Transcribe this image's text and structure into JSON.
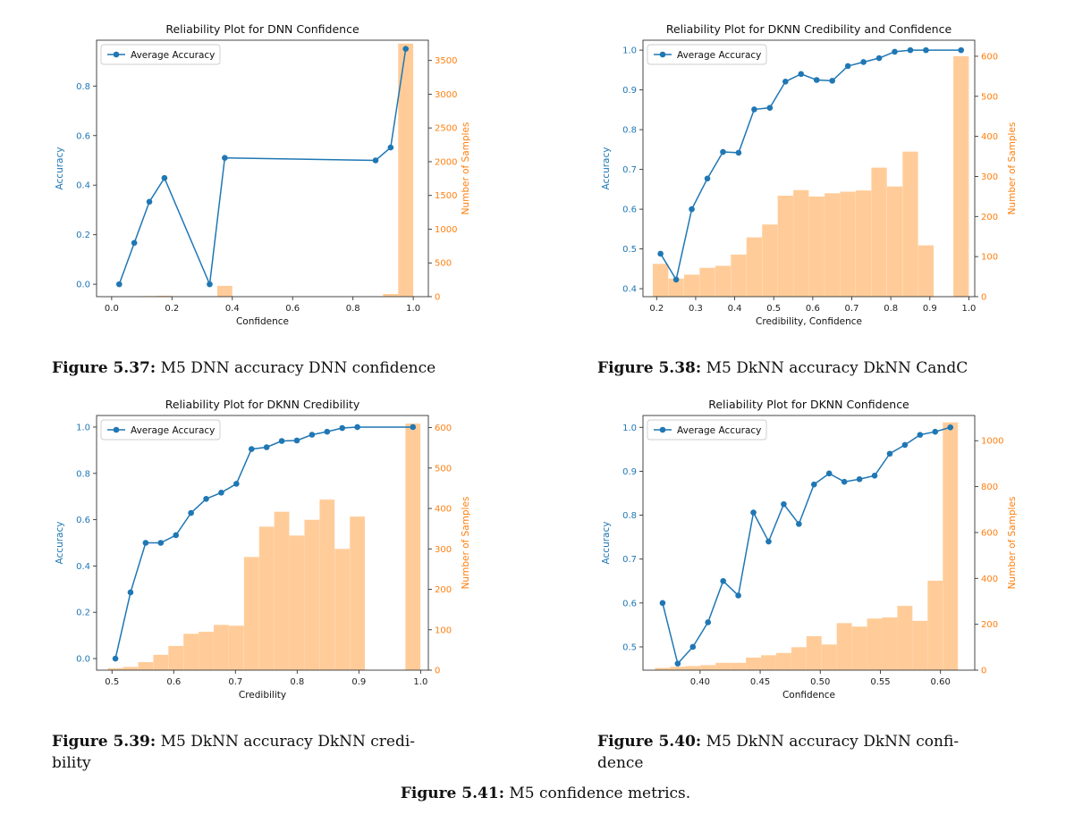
{
  "colors": {
    "line": "#1f77b4",
    "bar": "#ffcc99",
    "barAxis": "#ff7f0e",
    "axis": "#333333"
  },
  "chart_data": [
    {
      "type": "bar+line",
      "title": "Reliability Plot for DNN Confidence",
      "xlabel": "Confidence",
      "ylabel": "Accuracy",
      "ylabel2": "Number of Samples",
      "legend": "Average Accuracy",
      "legend_loc": "top-left",
      "xlim": [
        -0.05,
        1.05
      ],
      "ylim": [
        -0.05,
        0.985
      ],
      "y2lim": [
        0,
        3800
      ],
      "xticks": [
        0.0,
        0.2,
        0.4,
        0.6,
        0.8,
        1.0
      ],
      "xticklabels": [
        "0.0",
        "0.2",
        "0.4",
        "0.6",
        "0.8",
        "1.0"
      ],
      "yticks": [
        0.0,
        0.2,
        0.4,
        0.6,
        0.8
      ],
      "yticklabels": [
        "0.0",
        "0.2",
        "0.4",
        "0.6",
        "0.8"
      ],
      "y2ticks": [
        0,
        500,
        1000,
        1500,
        2000,
        2500,
        3000,
        3500
      ],
      "y2ticklabels": [
        "0",
        "500",
        "1000",
        "1500",
        "2000",
        "2500",
        "3000",
        "3500"
      ],
      "bar_width": 0.05,
      "bars_x": [
        0.025,
        0.075,
        0.125,
        0.175,
        0.325,
        0.375,
        0.875,
        0.925,
        0.975
      ],
      "bars_y": [
        3,
        6,
        9,
        14,
        4,
        160,
        4,
        40,
        3750
      ],
      "line_x": [
        0.025,
        0.075,
        0.125,
        0.175,
        0.325,
        0.375,
        0.875,
        0.925,
        0.975
      ],
      "line_y": [
        0.0,
        0.167,
        0.333,
        0.429,
        0.0,
        0.51,
        0.5,
        0.552,
        0.95
      ]
    },
    {
      "type": "bar+line",
      "title": "Reliability Plot for DKNN Credibility and Confidence",
      "xlabel": "Credibility, Confidence",
      "ylabel": "Accuracy",
      "ylabel2": "Number of Samples",
      "legend": "Average Accuracy",
      "legend_loc": "top-left",
      "xlim": [
        0.165,
        1.015
      ],
      "ylim": [
        0.38,
        1.025
      ],
      "y2lim": [
        0,
        640
      ],
      "xticks": [
        0.2,
        0.3,
        0.4,
        0.5,
        0.6,
        0.7,
        0.8,
        0.9,
        1.0
      ],
      "xticklabels": [
        "0.2",
        "0.3",
        "0.4",
        "0.5",
        "0.6",
        "0.7",
        "0.8",
        "0.9",
        "1.0"
      ],
      "yticks": [
        0.4,
        0.5,
        0.6,
        0.7,
        0.8,
        0.9,
        1.0
      ],
      "yticklabels": [
        "0.4",
        "0.5",
        "0.6",
        "0.7",
        "0.8",
        "0.9",
        "1.0"
      ],
      "y2ticks": [
        0,
        100,
        200,
        300,
        400,
        500,
        600
      ],
      "y2ticklabels": [
        "0",
        "100",
        "200",
        "300",
        "400",
        "500",
        "600"
      ],
      "bar_width": 0.0396,
      "bars_x": [
        0.21,
        0.25,
        0.29,
        0.33,
        0.37,
        0.41,
        0.45,
        0.49,
        0.53,
        0.57,
        0.61,
        0.65,
        0.69,
        0.73,
        0.77,
        0.81,
        0.85,
        0.89,
        0.98
      ],
      "bars_y": [
        82,
        45,
        55,
        72,
        77,
        105,
        148,
        180,
        252,
        266,
        250,
        258,
        262,
        265,
        322,
        275,
        362,
        128,
        600
      ],
      "line_x": [
        0.21,
        0.25,
        0.29,
        0.33,
        0.37,
        0.41,
        0.45,
        0.49,
        0.53,
        0.57,
        0.61,
        0.65,
        0.69,
        0.73,
        0.77,
        0.81,
        0.85,
        0.89,
        0.98
      ],
      "line_y": [
        0.488,
        0.423,
        0.6,
        0.677,
        0.744,
        0.742,
        0.851,
        0.855,
        0.921,
        0.94,
        0.925,
        0.923,
        0.96,
        0.97,
        0.98,
        0.996,
        1.0,
        1.0,
        1.0
      ]
    },
    {
      "type": "bar+line",
      "title": "Reliability Plot for DKNN Credibility",
      "xlabel": "Credibility",
      "ylabel": "Accuracy",
      "ylabel2": "Number of Samples",
      "legend": "Average Accuracy",
      "legend_loc": "top-left",
      "xlim": [
        0.475,
        1.0125
      ],
      "ylim": [
        -0.05,
        1.05
      ],
      "y2lim": [
        0,
        630
      ],
      "xticks": [
        0.5,
        0.6,
        0.7,
        0.8,
        0.9,
        1.0
      ],
      "xticklabels": [
        "0.5",
        "0.6",
        "0.7",
        "0.8",
        "0.9",
        "1.0"
      ],
      "yticks": [
        0.0,
        0.2,
        0.4,
        0.6,
        0.8,
        1.0
      ],
      "yticklabels": [
        "0.0",
        "0.2",
        "0.4",
        "0.6",
        "0.8",
        "1.0"
      ],
      "y2ticks": [
        0,
        100,
        200,
        300,
        400,
        500,
        600
      ],
      "y2ticklabels": [
        "0",
        "100",
        "200",
        "300",
        "400",
        "500",
        "600"
      ],
      "bar_width": 0.0243,
      "bars_x": [
        0.5055,
        0.53,
        0.5545,
        0.579,
        0.6035,
        0.628,
        0.6525,
        0.677,
        0.7015,
        0.726,
        0.7505,
        0.775,
        0.7995,
        0.824,
        0.8485,
        0.873,
        0.8975,
        0.9875
      ],
      "bars_y": [
        5,
        8,
        20,
        38,
        60,
        90,
        95,
        112,
        110,
        280,
        355,
        392,
        333,
        372,
        422,
        300,
        380,
        610
      ],
      "line_x": [
        0.5055,
        0.53,
        0.5545,
        0.579,
        0.6035,
        0.628,
        0.6525,
        0.677,
        0.7015,
        0.726,
        0.7505,
        0.775,
        0.7995,
        0.824,
        0.8485,
        0.873,
        0.8975,
        0.9875
      ],
      "line_y": [
        0.0,
        0.286,
        0.5,
        0.5,
        0.533,
        0.629,
        0.69,
        0.717,
        0.755,
        0.905,
        0.913,
        0.94,
        0.942,
        0.967,
        0.98,
        0.996,
        1.0,
        1.0
      ]
    },
    {
      "type": "bar+line",
      "title": "Reliability Plot for DKNN Confidence",
      "xlabel": "Confidence",
      "ylabel": "Accuracy",
      "ylabel2": "Number of Samples",
      "legend": "Average Accuracy",
      "legend_loc": "top-left",
      "xlim": [
        0.3525,
        0.6285
      ],
      "ylim": [
        0.447,
        1.027
      ],
      "y2lim": [
        0,
        1110
      ],
      "xticks": [
        0.4,
        0.45,
        0.5,
        0.55,
        0.6
      ],
      "xticklabels": [
        "0.40",
        "0.45",
        "0.50",
        "0.55",
        "0.60"
      ],
      "yticks": [
        0.5,
        0.6,
        0.7,
        0.8,
        0.9,
        1.0
      ],
      "yticklabels": [
        "0.5",
        "0.6",
        "0.7",
        "0.8",
        "0.9",
        "1.0"
      ],
      "y2ticks": [
        0,
        200,
        400,
        600,
        800,
        1000
      ],
      "y2ticklabels": [
        "0",
        "200",
        "400",
        "600",
        "800",
        "1000"
      ],
      "bar_width": 0.01256,
      "bars_x": [
        0.3688,
        0.3814,
        0.394,
        0.4066,
        0.4192,
        0.4318,
        0.4444,
        0.457,
        0.4696,
        0.4822,
        0.4948,
        0.5074,
        0.52,
        0.5326,
        0.5452,
        0.5578,
        0.5704,
        0.583,
        0.5956,
        0.6082
      ],
      "bars_y": [
        10,
        15,
        18,
        22,
        32,
        32,
        55,
        65,
        75,
        100,
        148,
        112,
        205,
        190,
        225,
        230,
        280,
        215,
        390,
        1080
      ],
      "line_x": [
        0.3688,
        0.3814,
        0.394,
        0.4066,
        0.4192,
        0.4318,
        0.4444,
        0.457,
        0.4696,
        0.4822,
        0.4948,
        0.5074,
        0.52,
        0.5326,
        0.5452,
        0.5578,
        0.5704,
        0.583,
        0.5956,
        0.6082
      ],
      "line_y": [
        0.6,
        0.462,
        0.5,
        0.556,
        0.65,
        0.617,
        0.806,
        0.74,
        0.825,
        0.78,
        0.87,
        0.895,
        0.876,
        0.882,
        0.89,
        0.94,
        0.96,
        0.983,
        0.99,
        1.0
      ]
    }
  ],
  "captions": [
    {
      "label": "Figure 5.37:",
      "text": "M5 DNN accuracy DNN confidence"
    },
    {
      "label": "Figure 5.38:",
      "text": "M5 DkNN accuracy DkNN CandC"
    },
    {
      "label": "Figure 5.39:",
      "text": "M5 DkNN accuracy DkNN credi-",
      "text2": "bility"
    },
    {
      "label": "Figure 5.40:",
      "text": "M5 DkNN accuracy DkNN confi-",
      "text2": "dence"
    }
  ],
  "main_caption": {
    "label": "Figure 5.41:",
    "text": "M5 confidence metrics."
  }
}
